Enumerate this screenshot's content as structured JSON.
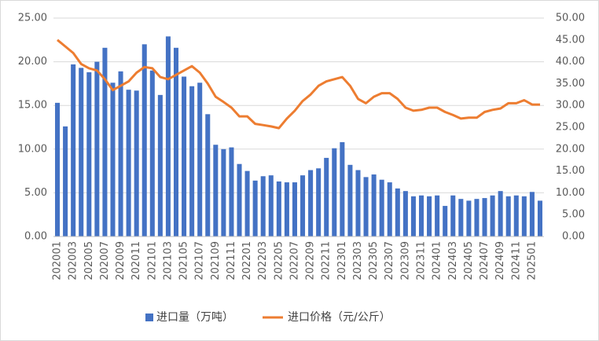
{
  "chart_data": {
    "type": "bar_line",
    "categories": [
      "202001",
      null,
      "202003",
      null,
      "202005",
      null,
      "202007",
      null,
      "202009",
      null,
      "202011",
      null,
      "202101",
      null,
      "202103",
      null,
      "202105",
      null,
      "202107",
      null,
      "202109",
      null,
      "202111",
      null,
      "202201",
      null,
      "202203",
      null,
      "202205",
      null,
      "202207",
      null,
      "202209",
      null,
      "202211",
      null,
      "202301",
      null,
      "202303",
      null,
      "202305",
      null,
      "202307",
      null,
      "202309",
      null,
      "202311",
      null,
      "202401",
      null,
      "202403",
      null,
      "202405",
      null,
      "202407",
      null,
      "202409",
      null,
      "202411",
      null,
      "202501",
      null
    ],
    "series": [
      {
        "name": "进口量（万吨）",
        "type": "bar",
        "color": "#4472c4",
        "values": [
          15.3,
          12.6,
          19.7,
          19.3,
          18.8,
          20.0,
          21.6,
          17.6,
          18.9,
          16.8,
          16.7,
          22.0,
          19.0,
          16.2,
          22.9,
          21.6,
          18.3,
          17.2,
          17.6,
          14.0,
          10.5,
          10.0,
          10.2,
          8.3,
          7.5,
          6.4,
          6.9,
          7.0,
          6.3,
          6.2,
          6.2,
          7.0,
          7.6,
          7.8,
          9.0,
          10.1,
          10.8,
          8.2,
          7.6,
          6.8,
          7.1,
          6.5,
          6.2,
          5.5,
          5.2,
          4.6,
          4.7,
          4.6,
          4.7,
          3.5,
          4.7,
          4.3,
          4.1,
          4.3,
          4.4,
          4.7,
          5.2,
          4.6,
          4.7,
          4.6,
          5.1,
          4.1
        ]
      },
      {
        "name": "进口价格（元/公斤）",
        "type": "line",
        "axis": "y2",
        "color": "#ed7d31",
        "values": [
          45,
          43.5,
          42,
          39.5,
          38.5,
          38,
          36,
          33.5,
          34.5,
          35.5,
          37.5,
          38.8,
          38.5,
          36.5,
          36,
          37,
          38,
          39,
          37.5,
          35,
          32,
          30.8,
          29.5,
          27.5,
          27.5,
          25.8,
          25.5,
          25.2,
          24.8,
          27,
          28.8,
          31,
          32.5,
          34.5,
          35.5,
          36,
          36.5,
          34.5,
          31.5,
          30.5,
          32,
          32.8,
          32.8,
          31.5,
          29.5,
          28.8,
          29,
          29.5,
          29.5,
          28.5,
          27.8,
          27.0,
          27.2,
          27.2,
          28.5,
          29.0,
          29.3,
          30.5,
          30.5,
          31.2,
          30.2,
          30.2
        ]
      }
    ],
    "ylim": [
      0,
      25
    ],
    "yticks": [
      {
        "value": 0,
        "label": "0.00"
      },
      {
        "value": 5,
        "label": "5.00"
      },
      {
        "value": 10,
        "label": "10.00"
      },
      {
        "value": 15,
        "label": "15.00"
      },
      {
        "value": 20,
        "label": "20.00"
      },
      {
        "value": 25,
        "label": "25.00"
      }
    ],
    "y2lim": [
      0,
      50
    ],
    "y2ticks": [
      {
        "value": 0,
        "label": "0.00"
      },
      {
        "value": 5,
        "label": "5.00"
      },
      {
        "value": 10,
        "label": "10.00"
      },
      {
        "value": 15,
        "label": "15.00"
      },
      {
        "value": 20,
        "label": "20.00"
      },
      {
        "value": 25,
        "label": "25.00"
      },
      {
        "value": 30,
        "label": "30.00"
      },
      {
        "value": 35,
        "label": "35.00"
      },
      {
        "value": 40,
        "label": "40.00"
      },
      {
        "value": 45,
        "label": "45.00"
      },
      {
        "value": 50,
        "label": "50.00"
      }
    ],
    "grid": true,
    "legend": "bottom"
  }
}
